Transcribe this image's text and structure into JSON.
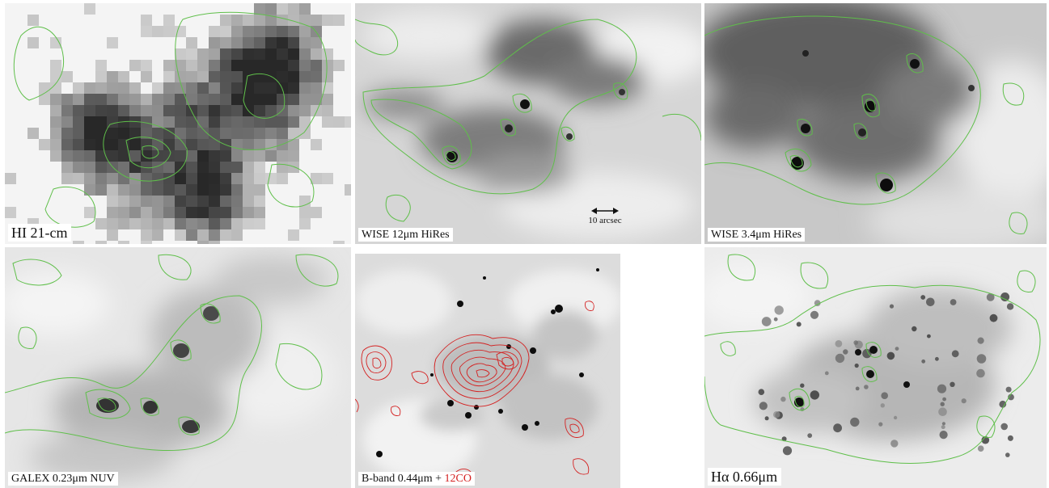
{
  "panels": [
    {
      "id": "hi",
      "label": "HI 21-cm"
    },
    {
      "id": "wise12",
      "label": "WISE 12μm HiRes"
    },
    {
      "id": "wise34",
      "label": "WISE 3.4μm HiRes"
    },
    {
      "id": "galex",
      "label": "GALEX 0.23μm NUV"
    },
    {
      "id": "bband",
      "label_prefix": "B-band 0.44μm  +",
      "label_co": "12CO"
    },
    {
      "id": "halpha",
      "label": "Hα 0.66μm"
    }
  ],
  "scale_bar": {
    "text": "10 arcsec"
  },
  "colors": {
    "contour_green": "#5fbf4a",
    "contour_red": "#d42020",
    "label_bg": "#ffffff"
  }
}
